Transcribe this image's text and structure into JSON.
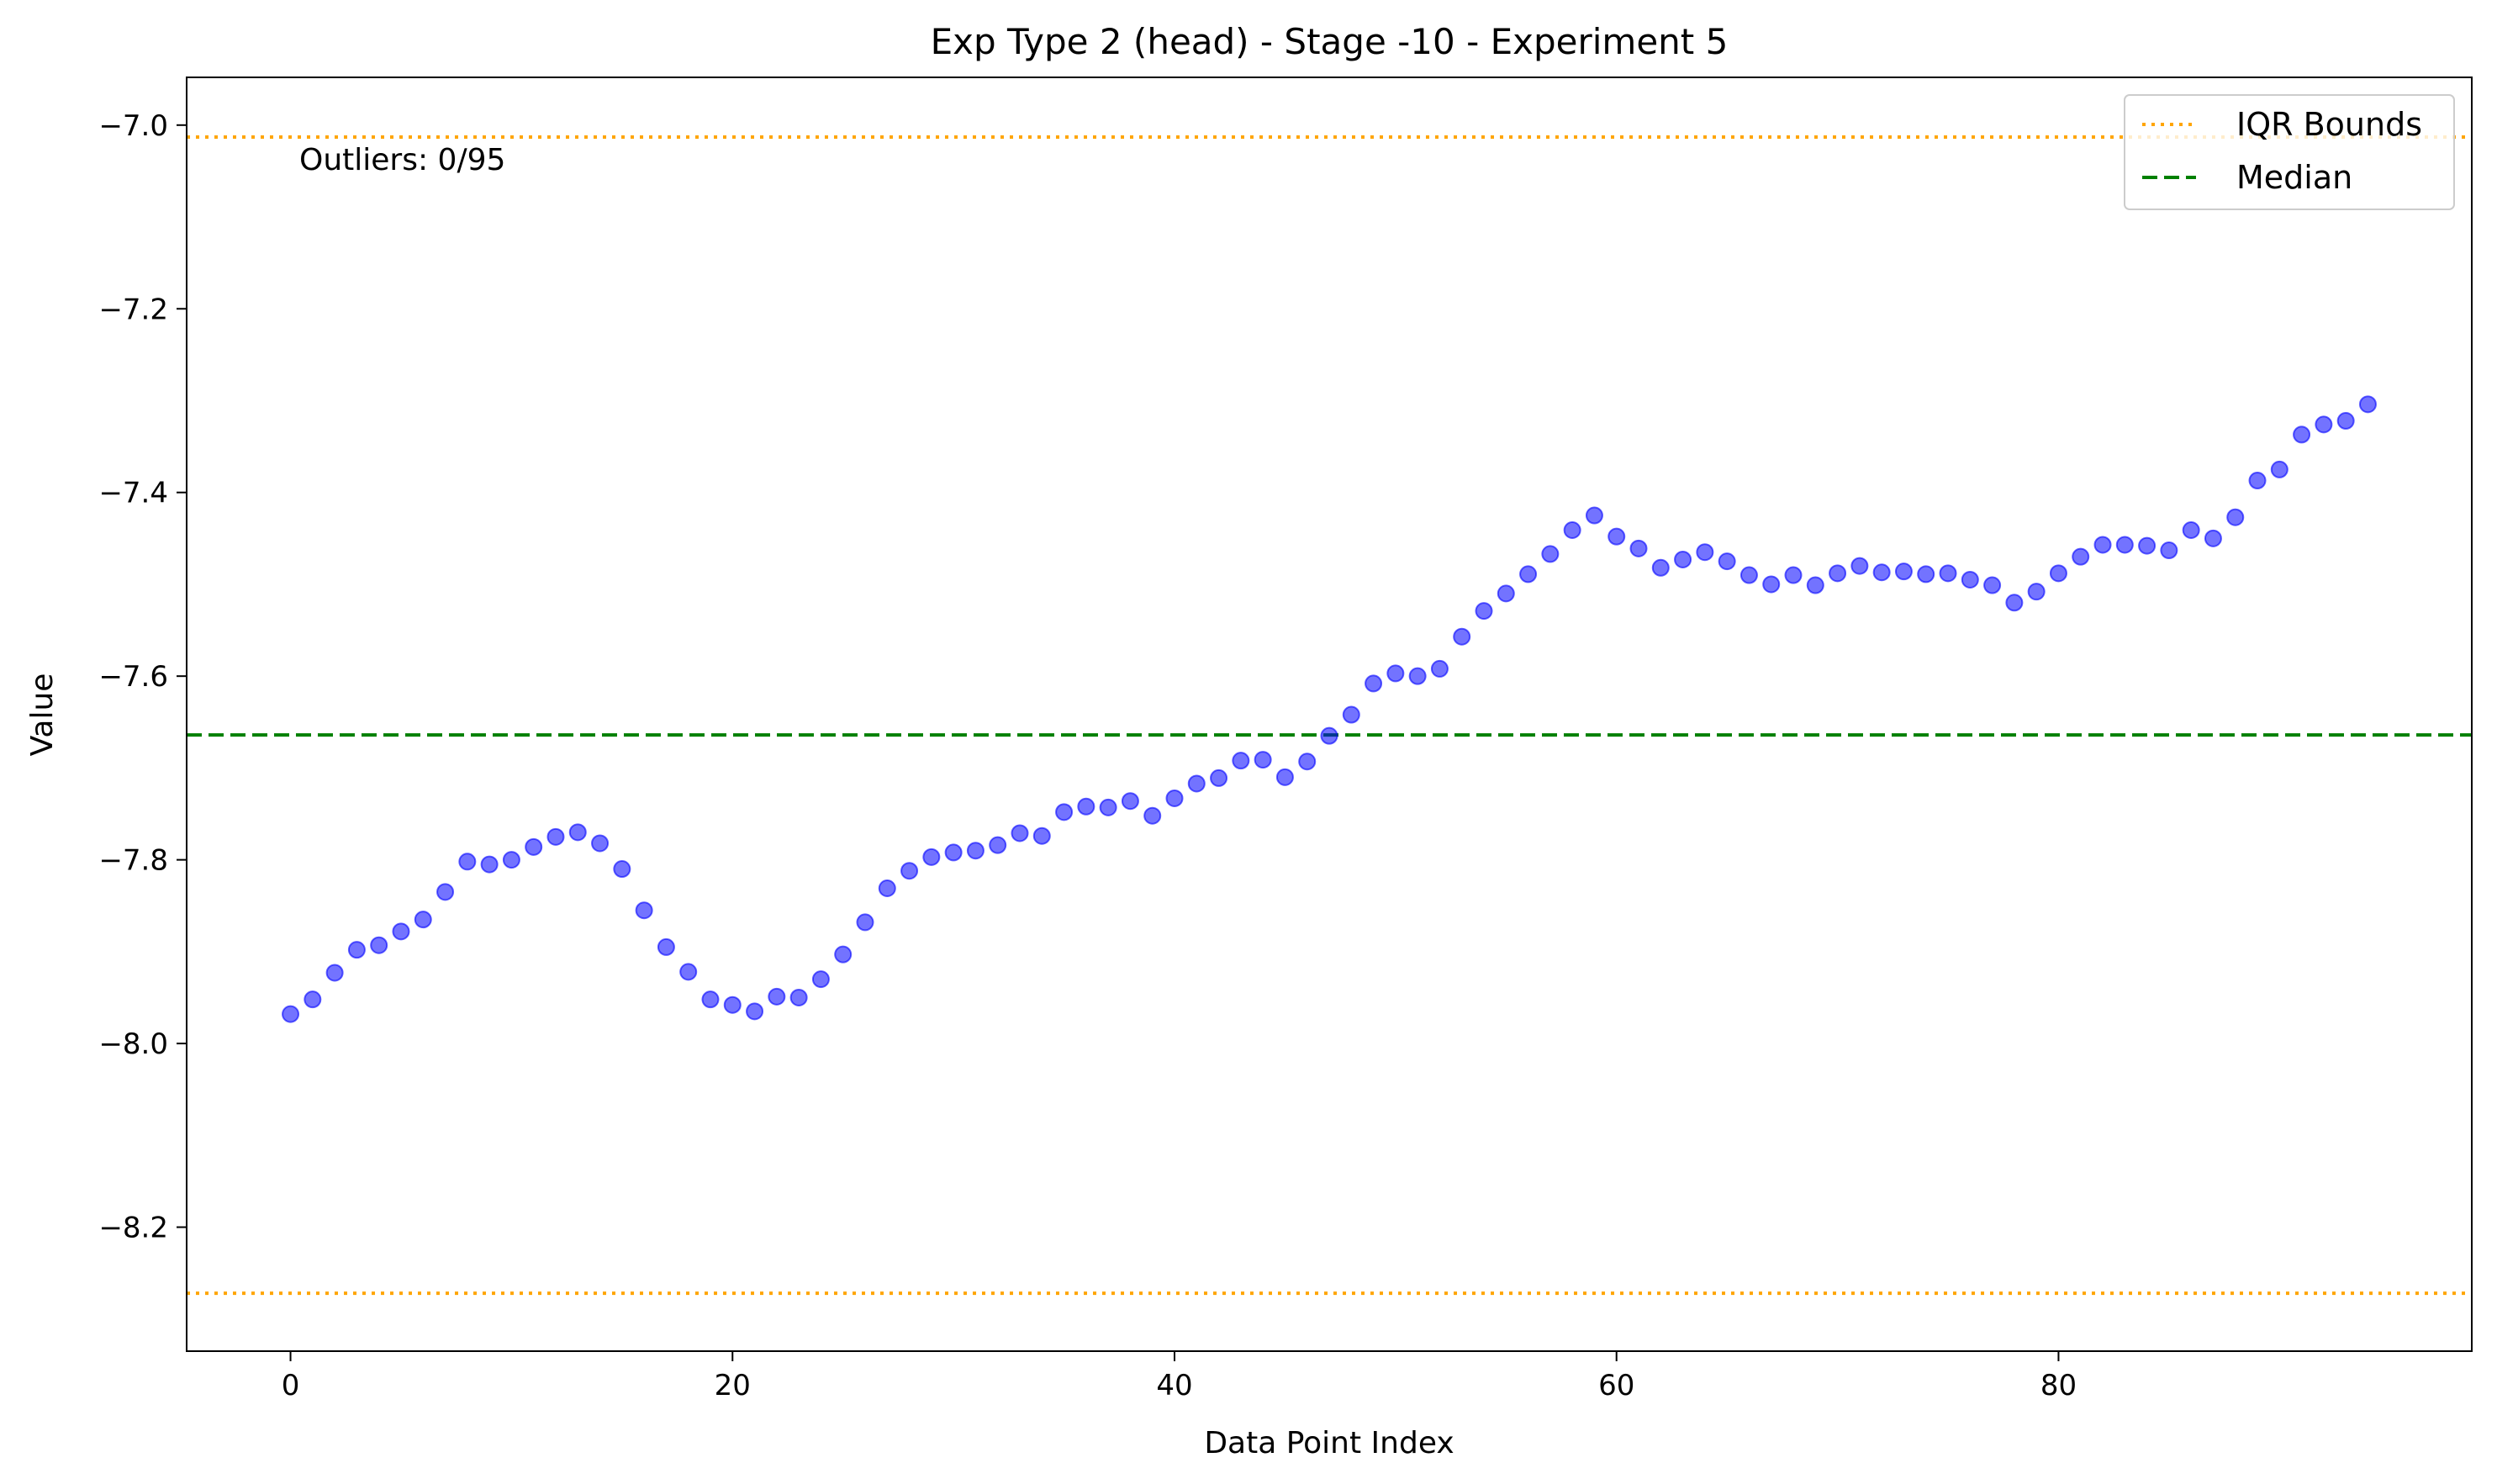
{
  "chart_data": {
    "type": "scatter",
    "title": "Exp Type 2 (head) - Stage -10 - Experiment 5",
    "xlabel": "Data Point Index",
    "ylabel": "Value",
    "xlim": [
      -4.7,
      98.7
    ],
    "ylim": [
      -8.335,
      -6.948
    ],
    "xticks": [
      0,
      20,
      40,
      60,
      80
    ],
    "xtick_labels": [
      "0",
      "20",
      "40",
      "60",
      "80"
    ],
    "yticks": [
      -7.0,
      -7.2,
      -7.4,
      -7.6,
      -7.8,
      -8.0,
      -8.2
    ],
    "ytick_labels": [
      "−7.0",
      "−7.2",
      "−7.4",
      "−7.6",
      "−7.8",
      "−8.0",
      "−8.2"
    ],
    "grid": false,
    "legend_position": "top-right",
    "series": [
      {
        "name": "",
        "color": "#0000ff",
        "x": [
          0,
          1,
          2,
          3,
          4,
          5,
          6,
          7,
          8,
          9,
          10,
          11,
          12,
          13,
          14,
          15,
          16,
          17,
          18,
          19,
          20,
          21,
          22,
          23,
          24,
          25,
          26,
          27,
          28,
          29,
          30,
          31,
          32,
          33,
          34,
          35,
          36,
          37,
          38,
          39,
          40,
          41,
          42,
          43,
          44,
          45,
          46,
          47,
          48,
          49,
          50,
          51,
          52,
          53,
          54,
          55,
          56,
          57,
          58,
          59,
          60,
          61,
          62,
          63,
          64,
          65,
          66,
          67,
          68,
          69,
          70,
          71,
          72,
          73,
          74,
          75,
          76,
          77,
          78,
          79,
          80,
          81,
          82,
          83,
          84,
          85,
          86,
          87,
          88,
          89,
          90,
          91,
          92,
          93,
          94
        ],
        "y": [
          -7.968,
          -7.952,
          -7.923,
          -7.898,
          -7.893,
          -7.878,
          -7.865,
          -7.835,
          -7.802,
          -7.805,
          -7.8,
          -7.786,
          -7.775,
          -7.77,
          -7.782,
          -7.81,
          -7.855,
          -7.895,
          -7.922,
          -7.952,
          -7.958,
          -7.965,
          -7.949,
          -7.95,
          -7.93,
          -7.903,
          -7.868,
          -7.831,
          -7.812,
          -7.797,
          -7.792,
          -7.79,
          -7.784,
          -7.771,
          -7.774,
          -7.748,
          -7.742,
          -7.743,
          -7.736,
          -7.752,
          -7.733,
          -7.717,
          -7.711,
          -7.692,
          -7.691,
          -7.71,
          -7.693,
          -7.665,
          -7.642,
          -7.608,
          -7.597,
          -7.6,
          -7.592,
          -7.557,
          -7.529,
          -7.51,
          -7.489,
          -7.467,
          -7.441,
          -7.425,
          -7.448,
          -7.461,
          -7.482,
          -7.473,
          -7.465,
          -7.475,
          -7.49,
          -7.5,
          -7.49,
          -7.501,
          -7.488,
          -7.48,
          -7.487,
          -7.486,
          -7.489,
          -7.488,
          -7.495,
          -7.501,
          -7.52,
          -7.508,
          -7.488,
          -7.47,
          -7.457,
          -7.457,
          -7.458,
          -7.463,
          -7.441,
          -7.45,
          -7.427,
          -7.387,
          -7.375,
          -7.337,
          -7.326,
          -7.322,
          -7.304
        ]
      }
    ],
    "lines": [
      {
        "name": "IQR Bounds",
        "y": -7.013,
        "color": "#ffa500",
        "style": "dotted"
      },
      {
        "name": "IQR Bounds",
        "y": -8.272,
        "color": "#ffa500",
        "style": "dotted"
      },
      {
        "name": "Median",
        "y": -7.664,
        "color": "#008000",
        "style": "dashed"
      }
    ],
    "legend": [
      {
        "label": "IQR Bounds",
        "color": "#ffa500",
        "style": "dotted"
      },
      {
        "label": "Median",
        "color": "#008000",
        "style": "dashed"
      }
    ],
    "annotations": [
      {
        "text": "Outliers: 0/95"
      }
    ]
  }
}
